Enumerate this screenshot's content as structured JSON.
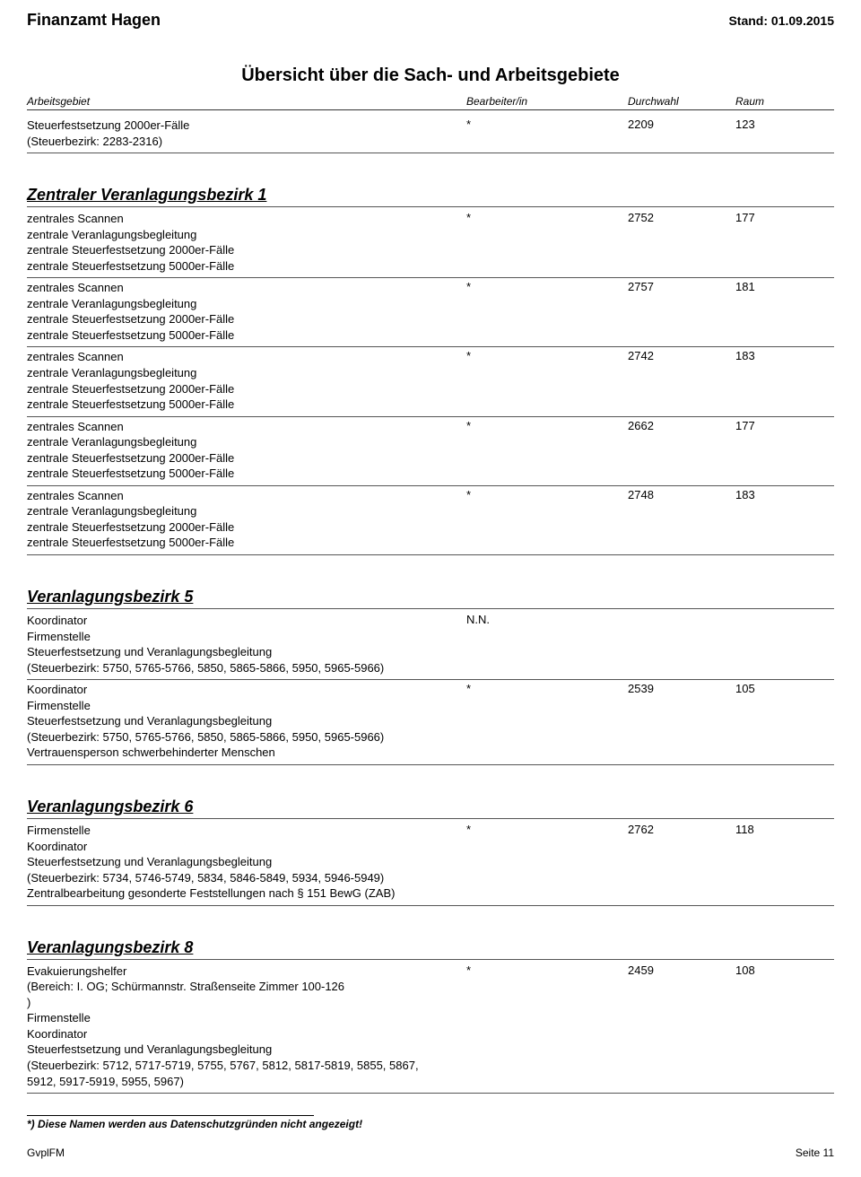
{
  "header": {
    "org": "Finanzamt Hagen",
    "stand_label": "Stand:",
    "stand_date": "01.09.2015"
  },
  "title": "Übersicht über die Sach- und Arbeitsgebiete",
  "columns": {
    "area": "Arbeitsgebiet",
    "bearbeiter": "Bearbeiter/in",
    "durchwahl": "Durchwahl",
    "raum": "Raum"
  },
  "top_rows": [
    {
      "lines": [
        "Steuerfestsetzung 2000er-Fälle",
        "(Steuerbezirk: 2283-2316)"
      ],
      "bearb": "*",
      "durch": "2209",
      "raum": "123"
    }
  ],
  "sections": [
    {
      "title": "Zentraler Veranlagungsbezirk 1",
      "rows": [
        {
          "lines": [
            "zentrales Scannen",
            "zentrale Veranlagungsbegleitung",
            "zentrale Steuerfestsetzung 2000er-Fälle",
            "zentrale Steuerfestsetzung 5000er-Fälle"
          ],
          "bearb": "*",
          "durch": "2752",
          "raum": "177"
        },
        {
          "lines": [
            "zentrales Scannen",
            "zentrale Veranlagungsbegleitung",
            "zentrale Steuerfestsetzung 2000er-Fälle",
            "zentrale Steuerfestsetzung 5000er-Fälle"
          ],
          "bearb": "*",
          "durch": "2757",
          "raum": "181"
        },
        {
          "lines": [
            "zentrales Scannen",
            "zentrale Veranlagungsbegleitung",
            "zentrale Steuerfestsetzung 2000er-Fälle",
            "zentrale Steuerfestsetzung 5000er-Fälle"
          ],
          "bearb": "*",
          "durch": "2742",
          "raum": "183"
        },
        {
          "lines": [
            "zentrales Scannen",
            "zentrale Veranlagungsbegleitung",
            "zentrale Steuerfestsetzung 2000er-Fälle",
            "zentrale Steuerfestsetzung 5000er-Fälle"
          ],
          "bearb": "*",
          "durch": "2662",
          "raum": "177"
        },
        {
          "lines": [
            "zentrales Scannen",
            "zentrale Veranlagungsbegleitung",
            "zentrale Steuerfestsetzung 2000er-Fälle",
            "zentrale Steuerfestsetzung 5000er-Fälle"
          ],
          "bearb": "*",
          "durch": "2748",
          "raum": "183"
        }
      ]
    },
    {
      "title": "Veranlagungsbezirk 5",
      "rows": [
        {
          "lines": [
            "Koordinator",
            "Firmenstelle",
            "Steuerfestsetzung und Veranlagungsbegleitung",
            "(Steuerbezirk: 5750, 5765-5766, 5850, 5865-5866, 5950, 5965-5966)"
          ],
          "bearb": "N.N.",
          "durch": "",
          "raum": ""
        },
        {
          "lines": [
            "Koordinator",
            "Firmenstelle",
            "Steuerfestsetzung und Veranlagungsbegleitung",
            "(Steuerbezirk: 5750, 5765-5766, 5850, 5865-5866, 5950, 5965-5966)",
            "Vertrauensperson schwerbehinderter Menschen"
          ],
          "bearb": "*",
          "durch": "2539",
          "raum": "105"
        }
      ]
    },
    {
      "title": "Veranlagungsbezirk 6",
      "rows": [
        {
          "lines": [
            "Firmenstelle",
            "Koordinator",
            "Steuerfestsetzung und Veranlagungsbegleitung",
            "(Steuerbezirk: 5734, 5746-5749, 5834, 5846-5849, 5934, 5946-5949)",
            "Zentralbearbeitung gesonderte Feststellungen nach § 151 BewG (ZAB)"
          ],
          "bearb": "*",
          "durch": "2762",
          "raum": "118"
        }
      ]
    },
    {
      "title": "Veranlagungsbezirk 8",
      "rows": [
        {
          "lines": [
            "Evakuierungshelfer",
            "(Bereich: I. OG; Schürmannstr. Straßenseite Zimmer 100-126",
            ")",
            "Firmenstelle",
            "Koordinator",
            "Steuerfestsetzung und Veranlagungsbegleitung",
            "(Steuerbezirk: 5712, 5717-5719, 5755, 5767, 5812, 5817-5819, 5855, 5867,",
            "5912, 5917-5919, 5955, 5967)"
          ],
          "bearb": "*",
          "durch": "2459",
          "raum": "108"
        }
      ]
    }
  ],
  "footnote": "*) Diese Namen werden aus Datenschutzgründen nicht angezeigt!",
  "footer": {
    "left": "GvplFM",
    "right": "Seite 11"
  }
}
